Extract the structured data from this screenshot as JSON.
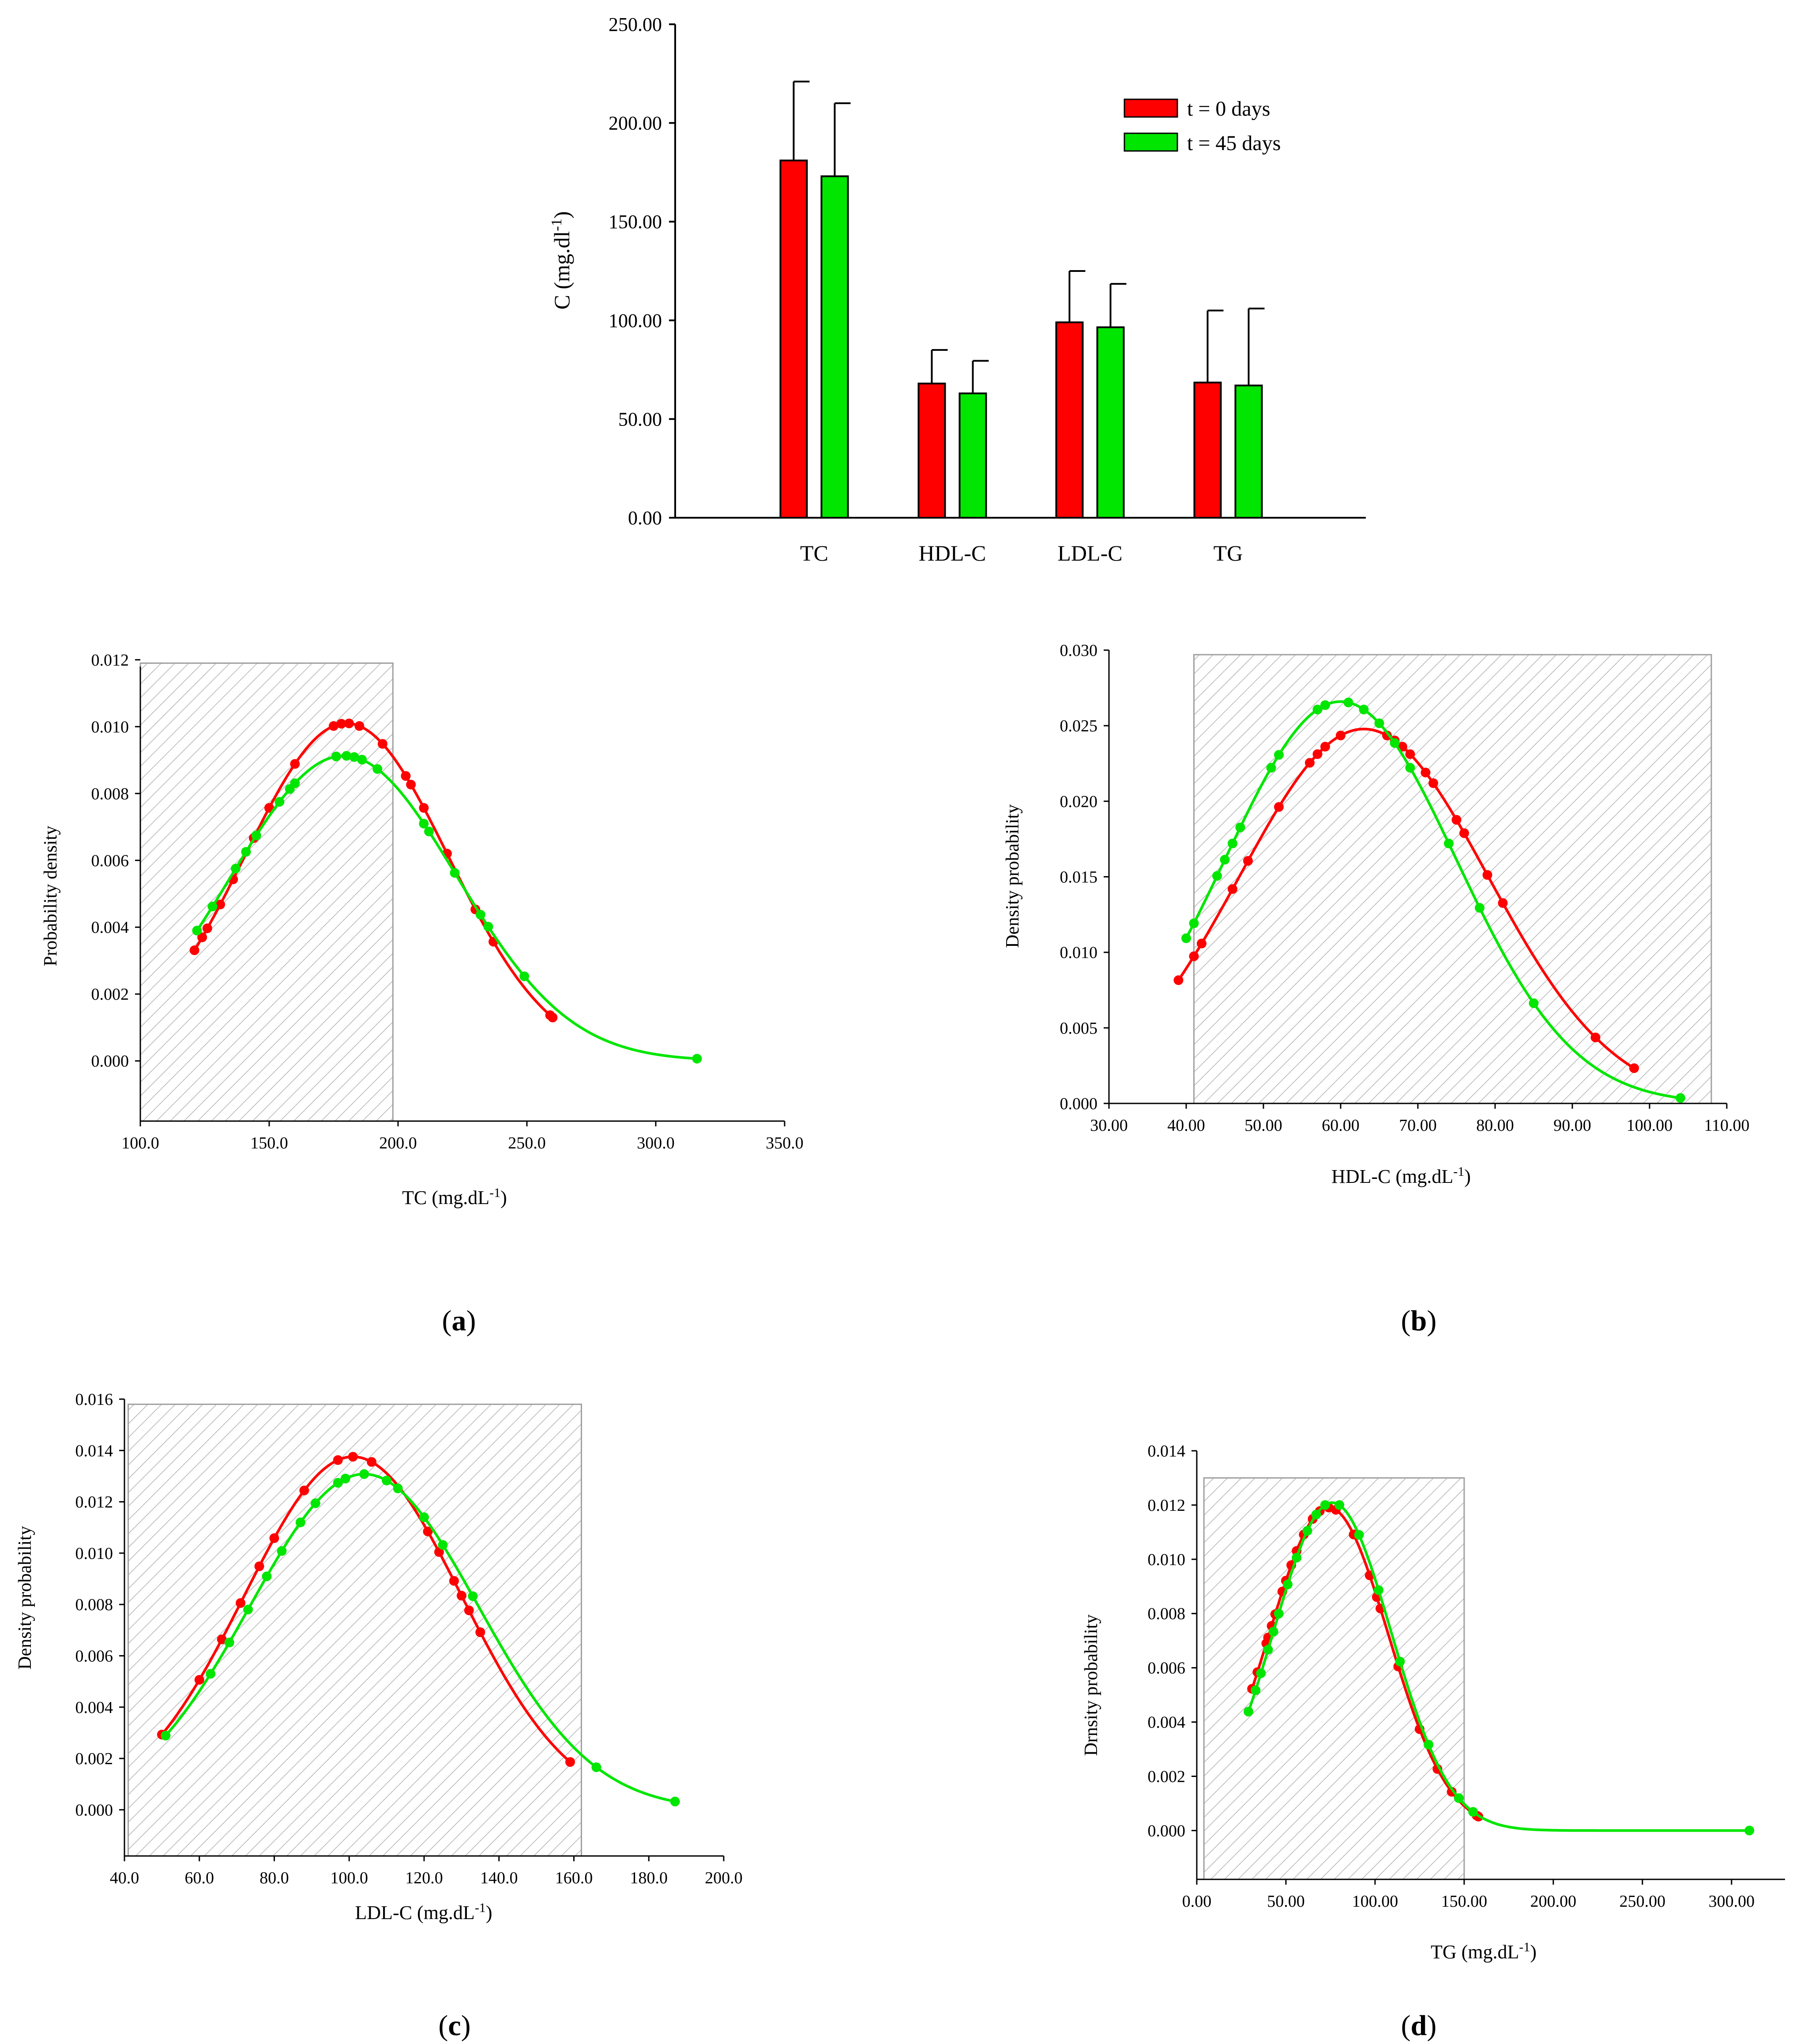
{
  "colors": {
    "t0": "#ff0000",
    "t45": "#00e600",
    "axis": "#000000",
    "hatch": "#b4b4b4"
  },
  "legend": {
    "t0": "t = 0 days",
    "t45": "t = 45 days"
  },
  "panel_labels": {
    "a": "a",
    "b": "b",
    "c": "c",
    "d": "d"
  },
  "chart_data": [
    {
      "id": "bar",
      "type": "bar",
      "title": "",
      "ylabel": "C (mg.dl",
      "ylabel_sup": "-1",
      "ylabel_tail": ")",
      "xlabel": "",
      "categories": [
        "TC",
        "HDL-C",
        "LDL-C",
        "TG"
      ],
      "ylim": [
        0,
        250
      ],
      "yticks": [
        0,
        50,
        100,
        150,
        200,
        250
      ],
      "ytick_labels": [
        "0.00",
        "50.00",
        "100.00",
        "150.00",
        "200.00",
        "250.00"
      ],
      "series": [
        {
          "name": "t = 0 days",
          "color": "#ff0000",
          "values": [
            181.0,
            68.0,
            99.0,
            68.5
          ],
          "errors": [
            40.0,
            17.0,
            26.0,
            36.5
          ]
        },
        {
          "name": "t = 45 days",
          "color": "#00e600",
          "values": [
            173.0,
            63.0,
            96.5,
            67.0
          ],
          "errors": [
            37.0,
            16.5,
            22.0,
            39.0
          ]
        }
      ]
    },
    {
      "id": "a",
      "type": "line",
      "xlabel": "TC (mg.dL",
      "xlabel_sup": "-1",
      "xlabel_tail": ")",
      "ylabel": "Probability density",
      "xlim": [
        100,
        350
      ],
      "ylim": [
        -0.0018,
        0.0118
      ],
      "xticks": [
        100,
        150,
        200,
        250,
        300,
        350
      ],
      "xtick_labels": [
        "100.0",
        "150.0",
        "200.0",
        "250.0",
        "300.0",
        "350.0"
      ],
      "yticks": [
        0,
        0.002,
        0.004,
        0.006,
        0.008,
        0.01,
        0.012
      ],
      "ytick_labels": [
        "0.000",
        "0.002",
        "0.004",
        "0.006",
        "0.008",
        "0.010",
        "0.012"
      ],
      "shade": {
        "x": [
          100,
          198
        ],
        "y": [
          -0.0018,
          0.0119
        ]
      },
      "series": [
        {
          "name": "t = 0 days",
          "color": "#ff0000",
          "mean": 180,
          "sd": 39.5,
          "x": [
            121,
            124,
            126,
            131,
            136,
            144,
            150,
            160,
            175,
            178,
            181,
            185,
            194,
            203,
            205,
            210,
            219,
            230,
            237,
            259,
            260
          ]
        },
        {
          "name": "t = 45 days",
          "color": "#00e600",
          "mean": 179,
          "sd": 43.7,
          "x": [
            122,
            128,
            137,
            141,
            145,
            154,
            158,
            160,
            176,
            180,
            183,
            186,
            192,
            210,
            212,
            222,
            232,
            235,
            249,
            316
          ]
        }
      ]
    },
    {
      "id": "b",
      "type": "line",
      "xlabel": "HDL-C (mg.dL",
      "xlabel_sup": "-1",
      "xlabel_tail": ")",
      "ylabel": "Density probability",
      "xlim": [
        30,
        110
      ],
      "ylim": [
        0,
        0.03
      ],
      "xticks": [
        30,
        40,
        50,
        60,
        70,
        80,
        90,
        100,
        110
      ],
      "xtick_labels": [
        "30.00",
        "40.00",
        "50.00",
        "60.00",
        "70.00",
        "80.00",
        "90.00",
        "100.00",
        "110.00"
      ],
      "yticks": [
        0,
        0.005,
        0.01,
        0.015,
        0.02,
        0.025,
        0.03
      ],
      "ytick_labels": [
        "0.000",
        "0.005",
        "0.010",
        "0.015",
        "0.020",
        "0.025",
        "0.030"
      ],
      "shade": {
        "x": [
          41,
          108
        ],
        "y": [
          0,
          0.0297
        ]
      },
      "series": [
        {
          "name": "t = 0 days",
          "color": "#ff0000",
          "mean": 63,
          "sd": 16.1,
          "x": [
            39,
            41,
            42,
            46,
            48,
            52,
            56,
            57,
            58,
            60,
            66,
            67,
            68,
            69,
            71,
            72,
            75,
            76,
            79,
            81,
            93,
            98
          ]
        },
        {
          "name": "t = 45 days",
          "color": "#00e600",
          "mean": 60,
          "sd": 15.0,
          "x": [
            40,
            41,
            44,
            45,
            46,
            47,
            51,
            52,
            57,
            58,
            61,
            63,
            65,
            67,
            69,
            74,
            78,
            85,
            104
          ]
        }
      ]
    },
    {
      "id": "c",
      "type": "line",
      "xlabel": "LDL-C (mg.dL",
      "xlabel_sup": "-1",
      "xlabel_tail": ")",
      "ylabel": "Density probability",
      "xlim": [
        40,
        200
      ],
      "ylim": [
        -0.0018,
        0.016
      ],
      "xticks": [
        40,
        60,
        80,
        100,
        120,
        140,
        160,
        180,
        200
      ],
      "xtick_labels": [
        "40.0",
        "60.0",
        "80.0",
        "100.0",
        "120.0",
        "140.0",
        "160.0",
        "180.0",
        "200.0"
      ],
      "yticks": [
        0,
        0.002,
        0.004,
        0.006,
        0.008,
        0.01,
        0.012,
        0.014,
        0.016
      ],
      "ytick_labels": [
        "0.000",
        "0.002",
        "0.004",
        "0.006",
        "0.008",
        "0.010",
        "0.012",
        "0.014",
        "0.016"
      ],
      "shade": {
        "x": [
          41,
          162
        ],
        "y": [
          -0.0018,
          0.0158
        ]
      },
      "series": [
        {
          "name": "t = 0 days",
          "color": "#ff0000",
          "mean": 101,
          "sd": 29.0,
          "x": [
            50,
            60,
            66,
            71,
            76,
            80,
            88,
            97,
            101,
            106,
            121,
            124,
            128,
            130,
            132,
            135,
            159
          ]
        },
        {
          "name": "t = 45 days",
          "color": "#00e600",
          "mean": 104,
          "sd": 30.5,
          "x": [
            51,
            63,
            68,
            73,
            78,
            82,
            87,
            91,
            97,
            99,
            104,
            110,
            113,
            120,
            125,
            133,
            166,
            187
          ]
        }
      ]
    },
    {
      "id": "d",
      "type": "line",
      "xlabel": "TG (mg.dL",
      "xlabel_sup": "-1",
      "xlabel_tail": ")",
      "ylabel": "Drnsity probability",
      "xlim": [
        0,
        330
      ],
      "ylim": [
        -0.0018,
        0.014
      ],
      "xticks": [
        0,
        50,
        100,
        150,
        200,
        250,
        300
      ],
      "xtick_labels": [
        "0.00",
        "50.00",
        "100.00",
        "150.00",
        "200.00",
        "250.00",
        "300.00"
      ],
      "yticks": [
        0,
        0.002,
        0.004,
        0.006,
        0.008,
        0.01,
        0.012,
        0.014
      ],
      "ytick_labels": [
        "0.000",
        "0.002",
        "0.004",
        "0.006",
        "0.008",
        "0.010",
        "0.012",
        "0.014"
      ],
      "shade": {
        "x": [
          4,
          150
        ],
        "y": [
          -0.0018,
          0.013
        ]
      },
      "series": [
        {
          "name": "t = 0 days",
          "color": "#ff0000",
          "mean": 74,
          "sd": 33.5,
          "x": [
            31,
            34,
            39,
            40,
            42,
            44,
            48,
            50,
            53,
            56,
            60,
            65,
            69,
            74,
            78,
            88,
            97,
            101,
            103,
            113,
            125,
            135,
            143,
            157,
            158
          ]
        },
        {
          "name": "t = 45 days",
          "color": "#00e600",
          "mean": 76,
          "sd": 33.0,
          "x": [
            29,
            33,
            36,
            40,
            43,
            46,
            51,
            56,
            62,
            67,
            72,
            80,
            91,
            102,
            114,
            130,
            147,
            155,
            310
          ]
        }
      ]
    }
  ]
}
